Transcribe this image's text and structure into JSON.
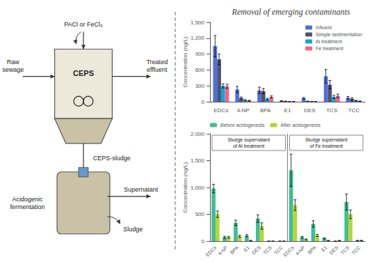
{
  "chart_data": [
    {
      "type": "diagram",
      "annotations": [
        "PACl or FeCl₃",
        "CEPS",
        "Raw\nsewage",
        "Treated\neffluent",
        "CEPS-sludge",
        "Acidogenic\nfermentation",
        "Supernatant",
        "Sludge"
      ]
    },
    {
      "type": "bar",
      "title": "Removal of emerging contaminants",
      "categories": [
        "EDCs",
        "4-NP",
        "BPA",
        "E1",
        "DES",
        "TCS",
        "TCC"
      ],
      "series": [
        {
          "name": "Influent",
          "values": [
            1050,
            230,
            215,
            15,
            65,
            480,
            75
          ],
          "errors": [
            200,
            60,
            60,
            4,
            15,
            130,
            25
          ]
        },
        {
          "name": "Simple sedimentation",
          "values": [
            800,
            70,
            200,
            8,
            8,
            320,
            55
          ],
          "errors": [
            100,
            20,
            50,
            3,
            4,
            80,
            20
          ]
        },
        {
          "name": "Al treatment",
          "values": [
            300,
            30,
            50,
            3,
            3,
            90,
            20
          ],
          "errors": [
            40,
            10,
            15,
            1,
            1,
            30,
            8
          ]
        },
        {
          "name": "Fe treatment",
          "values": [
            290,
            20,
            90,
            2,
            2,
            110,
            10
          ],
          "errors": [
            40,
            8,
            20,
            1,
            1,
            35,
            5
          ]
        }
      ],
      "ylabel": "Concentration (ng/L)",
      "ylim": [
        0,
        1500
      ],
      "yticks": [
        0,
        300,
        600,
        900,
        1200,
        1500
      ],
      "grid": false,
      "legend": "upper right"
    },
    {
      "type": "bar",
      "categories": [
        "EDCs",
        "4-NP",
        "BPA",
        "E1",
        "DES",
        "TCS",
        "TCC",
        "EDCs",
        "4-NP",
        "BPA",
        "E1",
        "DES",
        "TCS",
        "TCC"
      ],
      "series": [
        {
          "name": "Before acidogenesis",
          "values": [
            980,
            70,
            340,
            100,
            420,
            0,
            0,
            1320,
            70,
            320,
            50,
            0,
            730,
            10
          ],
          "errors": [
            80,
            20,
            50,
            20,
            70,
            0,
            0,
            300,
            15,
            60,
            10,
            0,
            150,
            5
          ]
        },
        {
          "name": "After acidogenesis",
          "values": [
            500,
            70,
            90,
            10,
            280,
            0,
            0,
            670,
            30,
            105,
            10,
            10,
            500,
            10
          ],
          "errors": [
            60,
            15,
            20,
            5,
            60,
            0,
            0,
            100,
            10,
            20,
            5,
            3,
            80,
            5
          ]
        }
      ],
      "ylabel": "Concentration (ng/L)",
      "ylim": [
        0,
        2000
      ],
      "yticks": [
        0,
        500,
        1000,
        1500,
        2000
      ],
      "grid": false,
      "annotations": [
        "Sludge supernatant\nof Al treatment",
        "Sludge supernatant\nof Fe treatment"
      ],
      "legend": "upper left"
    }
  ]
}
